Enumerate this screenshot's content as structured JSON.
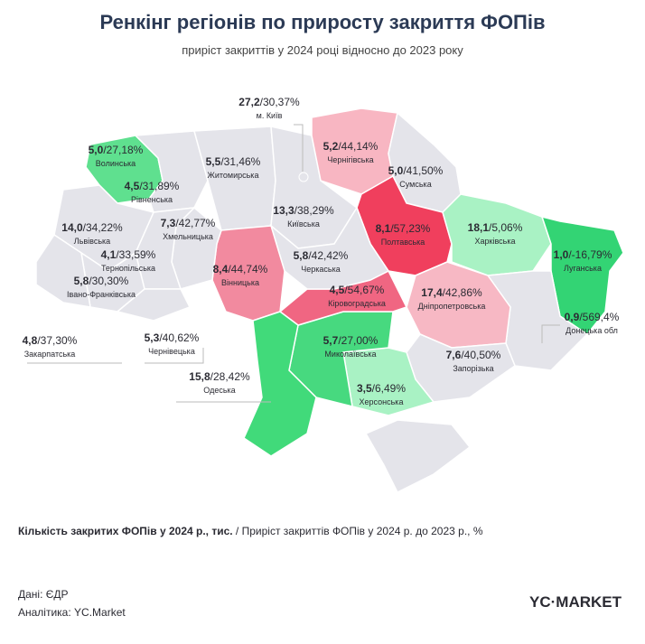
{
  "header": {
    "title": "Ренкінг регіонів по приросту закриття ФОПів",
    "subtitle": "приріст закриттів у 2024 році відносно до 2023 року"
  },
  "regions": [
    {
      "name": "Волинська",
      "count": "5,0",
      "growth": "/27,18%",
      "color": "#5fe08f"
    },
    {
      "name": "Рівненська",
      "count": "4,5",
      "growth": "/31,89%",
      "color": "#e4e4ea"
    },
    {
      "name": "Житомирська",
      "count": "5,5",
      "growth": "/31,46%",
      "color": "#e4e4ea"
    },
    {
      "name": "Київська",
      "count": "13,3",
      "growth": "/38,29%",
      "color": "#e4e4ea"
    },
    {
      "name": "Чернігівська",
      "count": "5,2",
      "growth": "/44,14%",
      "color": "#f8b6c2"
    },
    {
      "name": "Сумська",
      "count": "5,0",
      "growth": "/41,50%",
      "color": "#e4e4ea"
    },
    {
      "name": "Полтавська",
      "count": "8,1",
      "growth": "/57,23%",
      "color": "#f03f5d"
    },
    {
      "name": "Харківська",
      "count": "18,1",
      "growth": "/5,06%",
      "color": "#a9f2c4"
    },
    {
      "name": "Луганська",
      "count": "1,0",
      "growth": "/-16,79%",
      "color": "#33d474"
    },
    {
      "name": "Донецька обл",
      "count": "0,9",
      "growth": "/569,4%",
      "color": "#e4e4ea"
    },
    {
      "name": "Дніпропетровська",
      "count": "17,4",
      "growth": "/42,86%",
      "color": "#f7b8c4"
    },
    {
      "name": "Запорізька",
      "count": "7,6",
      "growth": "/40,50%",
      "color": "#e4e4ea"
    },
    {
      "name": "Херсонська",
      "count": "3,5",
      "growth": "/6,49%",
      "color": "#a9f2c4"
    },
    {
      "name": "Миколаївська",
      "count": "5,7",
      "growth": "/27,00%",
      "color": "#47d97f"
    },
    {
      "name": "Кіровоградська",
      "count": "4,5",
      "growth": "/54,67%",
      "color": "#f06682"
    },
    {
      "name": "Черкаська",
      "count": "5,8",
      "growth": "/42,42%",
      "color": "#e4e4ea"
    },
    {
      "name": "Вінницька",
      "count": "8,4",
      "growth": "/44,74%",
      "color": "#f28a9f"
    },
    {
      "name": "Одеська",
      "count": "15,8",
      "growth": "/28,42%",
      "color": "#41da7a"
    },
    {
      "name": "Хмельницька",
      "count": "7,3",
      "growth": "/42,77%",
      "color": "#e4e4ea"
    },
    {
      "name": "Тернопільська",
      "count": "4,1",
      "growth": "/33,59%",
      "color": "#e4e4ea"
    },
    {
      "name": "Львівська",
      "count": "14,0",
      "growth": "/34,22%",
      "color": "#e4e4ea"
    },
    {
      "name": "Івано-Франківська",
      "count": "5,8",
      "growth": "/30,30%",
      "color": "#e4e4ea"
    },
    {
      "name": "Закарпатська",
      "count": "4,8",
      "growth": "/37,30%",
      "color": "#e4e4ea"
    },
    {
      "name": "Чернівецька",
      "count": "5,3",
      "growth": "/40,62%",
      "color": "#e4e4ea"
    },
    {
      "name": "м. Київ",
      "count": "27,2",
      "growth": "/30,37%",
      "color": "#e4e4ea"
    }
  ],
  "legend": {
    "bold": "Кількість закритих ФОПів у 2024 р., тис.",
    "rest": " / Приріст закриттів ФОПів у 2024 р. до 2023 р., %"
  },
  "footer": {
    "source": "Дані: ЄДР",
    "analytics": "Аналітика: YC.Market",
    "logo": "YC·MARKET"
  }
}
